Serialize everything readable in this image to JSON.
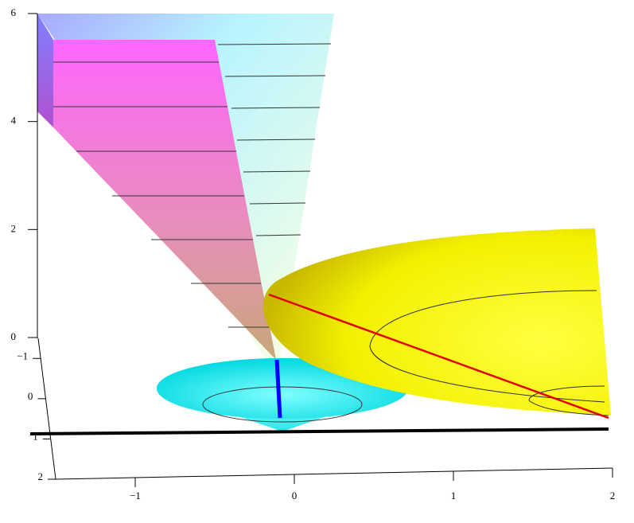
{
  "chart_data": {
    "type": "surface3d",
    "xlim": [
      -1.5,
      2
    ],
    "xticks": [
      {
        "value": -1,
        "label": "−1"
      },
      0,
      1,
      2
    ],
    "ylim": [
      -1.5,
      2
    ],
    "yticks": [
      {
        "value": -1,
        "label": "−1"
      },
      0,
      1,
      2
    ],
    "zlim": [
      0,
      6
    ],
    "zticks": [
      0,
      2,
      4,
      6
    ]
  }
}
